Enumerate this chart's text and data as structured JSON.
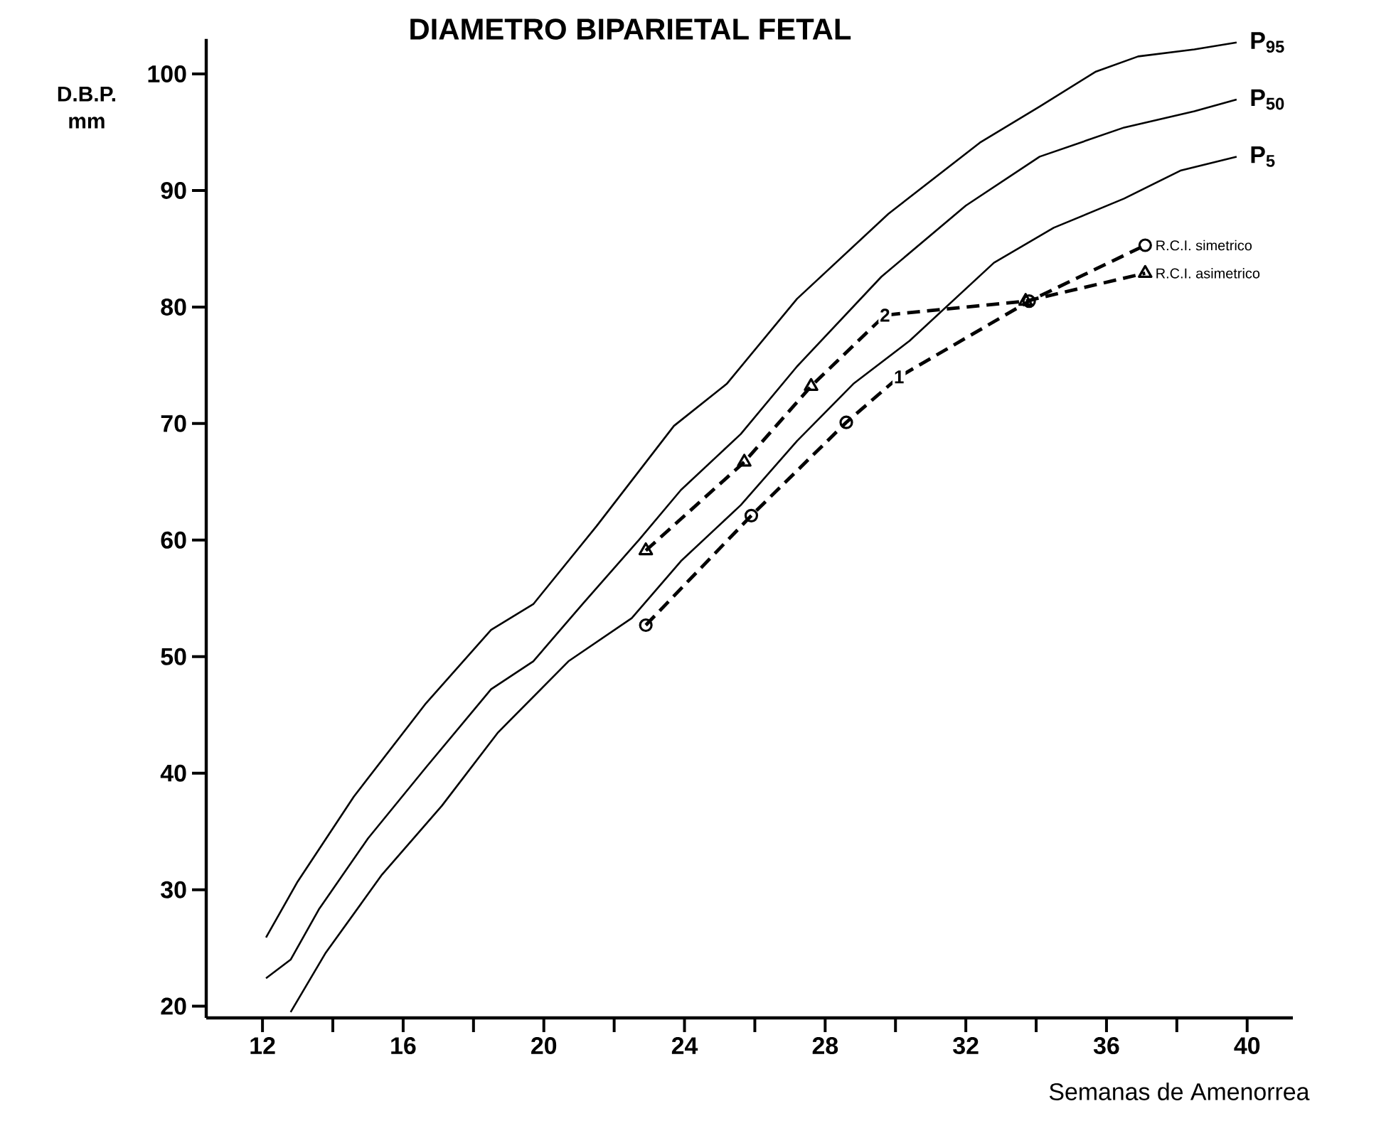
{
  "chart_data": {
    "type": "line",
    "title": "DIAMETRO BIPARIETAL FETAL",
    "xlabel": "Semanas de Amenorrea",
    "ylabel": "D.B.P. mm",
    "xlim": [
      10.4,
      41.3
    ],
    "ylim": [
      19,
      103
    ],
    "xticks": [
      12,
      {
        "value": 14,
        "label": null
      },
      16,
      {
        "value": 18,
        "label": null
      },
      20,
      {
        "value": 22,
        "label": null
      },
      24,
      {
        "value": 26,
        "label": null
      },
      28,
      {
        "value": 30,
        "label": null
      },
      32,
      {
        "value": 34,
        "label": null
      },
      36,
      {
        "value": 38,
        "label": null
      },
      40
    ],
    "yticks": [
      20,
      30,
      40,
      50,
      60,
      70,
      80,
      90,
      100
    ],
    "series": [
      {
        "name": "P$_{95}$",
        "color": "#000000",
        "line_style": "solid",
        "marker": "none",
        "x": [
          12.1,
          13.0,
          14.6,
          16.65,
          18.5,
          19.7,
          21.5,
          23.7,
          25.2,
          27.2,
          29.8,
          32.4,
          34.1,
          35.7,
          36.9,
          38.5,
          39.7
        ],
        "values": [
          25.9,
          30.7,
          38.0,
          46.0,
          52.3,
          54.5,
          61.2,
          69.8,
          73.4,
          80.7,
          88.0,
          94.1,
          97.2,
          100.2,
          101.5,
          102.1,
          102.7
        ]
      },
      {
        "name": "P$_{50}$",
        "color": "#000000",
        "line_style": "solid",
        "marker": "none",
        "x": [
          12.1,
          12.8,
          13.6,
          15.0,
          16.65,
          18.5,
          19.7,
          21.1,
          22.7,
          23.9,
          25.6,
          27.2,
          29.6,
          32.0,
          34.1,
          36.5,
          38.5,
          39.7
        ],
        "values": [
          22.4,
          24.0,
          28.3,
          34.4,
          40.5,
          47.2,
          49.6,
          54.5,
          60.0,
          64.3,
          69.1,
          74.9,
          82.6,
          88.7,
          92.9,
          95.4,
          96.8,
          97.8
        ]
      },
      {
        "name": "P$_{5}$",
        "color": "#000000",
        "line_style": "solid",
        "marker": "none",
        "x": [
          12.8,
          13.8,
          15.4,
          17.1,
          18.7,
          20.7,
          22.5,
          23.9,
          25.6,
          27.2,
          28.8,
          30.4,
          32.8,
          34.5,
          36.5,
          38.1,
          39.7
        ],
        "values": [
          19.5,
          24.6,
          31.3,
          37.2,
          43.5,
          49.6,
          53.3,
          58.2,
          63.0,
          68.5,
          73.4,
          77.1,
          83.8,
          86.8,
          89.3,
          91.7,
          92.9
        ]
      },
      {
        "name": "R.C.I. simetrico",
        "color": "#000000",
        "line_style": "dashed",
        "marker": "circle",
        "x": [
          22.9,
          25.9,
          28.6,
          30.1,
          33.8,
          37.1
        ],
        "values": [
          52.7,
          62.1,
          70.1,
          74.0,
          80.5,
          85.3
        ]
      },
      {
        "name": "R.C.I. asimetrico",
        "color": "#000000",
        "line_style": "dashed",
        "marker": "triangle",
        "x": [
          22.9,
          25.7,
          27.6,
          29.7,
          33.7,
          37.1
        ],
        "values": [
          59.1,
          66.7,
          73.2,
          79.3,
          80.5,
          82.9
        ]
      }
    ],
    "annotations": [
      {
        "text": "1",
        "x": 30.1,
        "y": 74.0
      },
      {
        "text": "2",
        "x": 29.7,
        "y": 79.3
      }
    ]
  }
}
